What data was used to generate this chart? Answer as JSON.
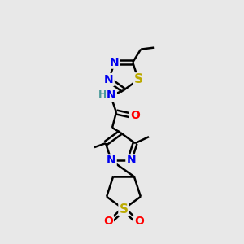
{
  "background_color": "#e8e8e8",
  "atom_colors": {
    "N": "#0000ee",
    "S": "#bbaa00",
    "O": "#ff0000",
    "H": "#4a9a9a",
    "C": "#000000"
  },
  "bond_color": "#000000",
  "bond_width": 1.8,
  "font_size_atom": 10,
  "fig_size": [
    3.0,
    3.0
  ],
  "dpi": 100
}
